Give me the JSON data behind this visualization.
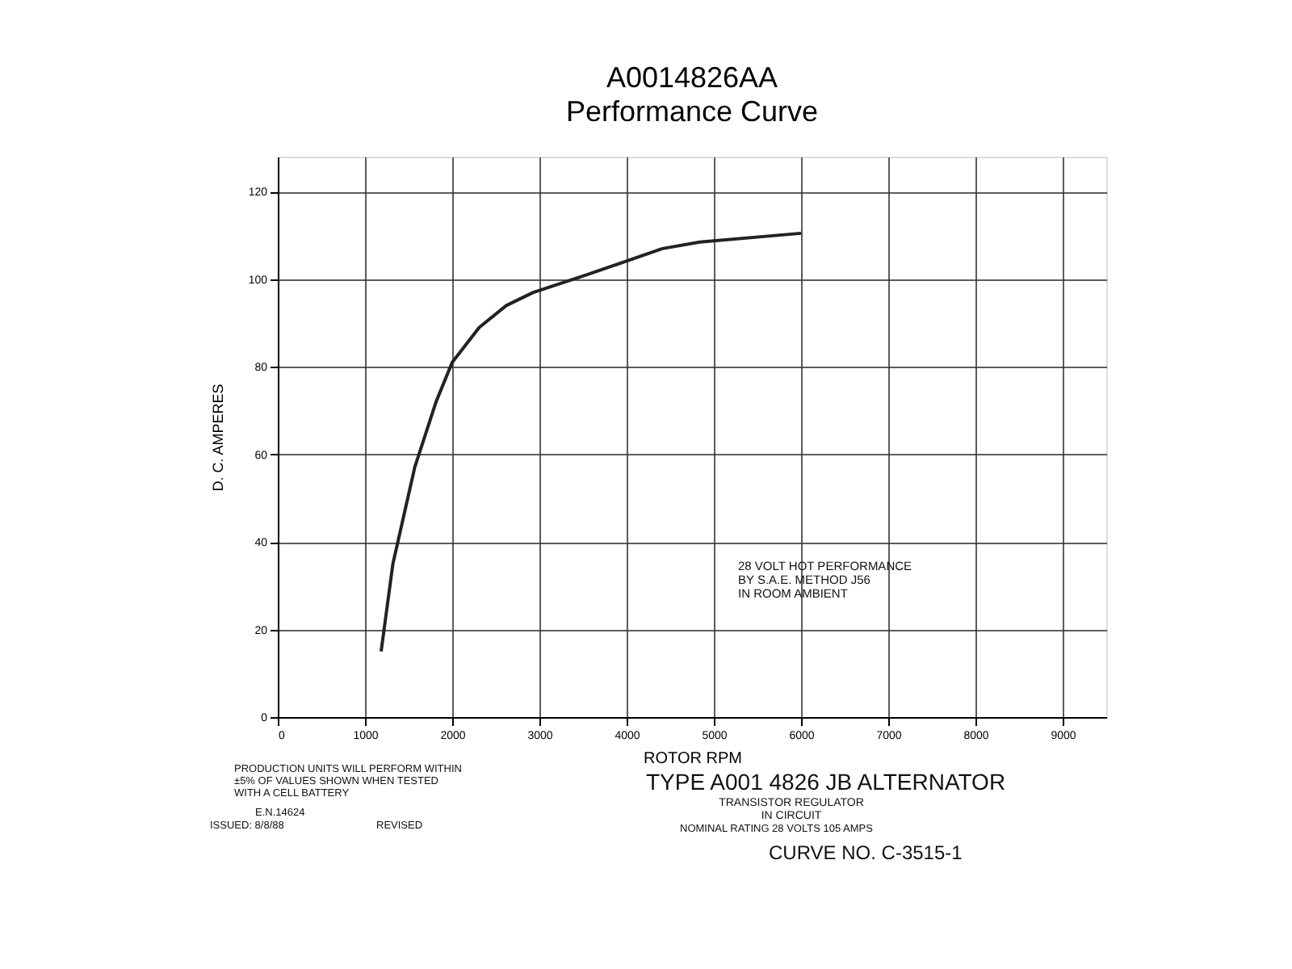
{
  "chart_data": {
    "type": "line",
    "title": "A0014826AA",
    "subtitle": "Performance Curve",
    "xlabel": "ROTOR RPM",
    "ylabel": "D. C. AMPERES",
    "x": [
      1185,
      1320,
      1570,
      1815,
      2000,
      2310,
      2620,
      2930,
      3540,
      4410,
      4840,
      6000
    ],
    "series": [
      {
        "color": "#222222",
        "values": [
          15,
          35,
          57,
          72,
          81,
          89,
          94,
          97,
          101,
          107,
          108.5,
          110.5
        ]
      }
    ],
    "xlim": [
      0,
      9500
    ],
    "xticks": [
      0,
      1000,
      2000,
      3000,
      4000,
      5000,
      6000,
      7000,
      8000,
      9000
    ],
    "ylim": [
      0,
      128
    ],
    "yticks": [
      0,
      20,
      40,
      60,
      80,
      100,
      120
    ],
    "grid": true,
    "marker": "none",
    "line_style": "solid",
    "annotations": [
      "28 VOLT  HOT  PERFORMANCE\nBY S.A.E. METHOD J56\nIN ROOM AMBIENT",
      "PRODUCTION UNITS WILL PERFORM WITHIN\n±5% OF VALUES SHOWN WHEN TESTED\nWITH A       CELL BATTERY",
      "E.N.14624",
      "ISSUED: 8/8/88",
      "REVISED",
      "TYPE  A001 4826 JB    ALTERNATOR",
      "TRANSISTOR REGULATOR\nIN CIRCUIT",
      "NOMINAL RATING        28 VOLTS        105 AMPS",
      "CURVE NO. C-3515-1"
    ]
  }
}
